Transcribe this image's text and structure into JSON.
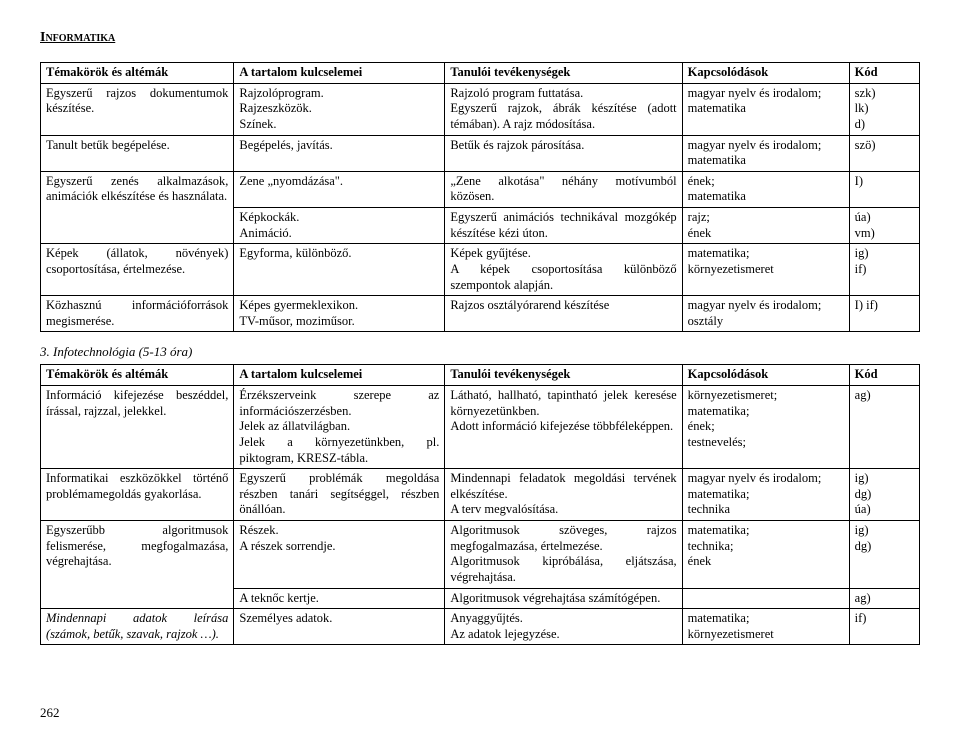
{
  "page": {
    "title": "Informatika",
    "pageNumber": "262"
  },
  "table1": {
    "headers": {
      "topic": "Témakörök és altémák",
      "content": "A tartalom kulcselemei",
      "activity": "Tanulói tevékenységek",
      "links": "Kapcsolódások",
      "code": "Kód"
    },
    "rows": [
      {
        "topic": "Egyszerű rajzos dokumentumok készítése.",
        "content": "Rajzolóprogram.\nRajzeszközök.\nSzínek.",
        "activity": "Rajzoló program futtatása.\nEgyszerű rajzok, ábrák készítése (adott témában). A rajz módosítása.",
        "links": "magyar nyelv és irodalom; matematika",
        "code": "szk)\nlk)\nd)"
      },
      {
        "topic": "Tanult betűk begépelése.",
        "content": "Begépelés, javítás.",
        "activity": "Betűk és rajzok párosítása.",
        "links": "magyar nyelv és irodalom; matematika",
        "code": "szö)"
      },
      {
        "topic_rowspan": 2,
        "topic": "Egyszerű zenés alkalmazások, animációk elkészítése és használata.",
        "content": "Zene „nyomdázása\".",
        "activity": "„Zene alkotása\" néhány motívumból közösen.",
        "links": "ének;\nmatematika",
        "code": "I)"
      },
      {
        "content": "Képkockák.\nAnimáció.",
        "activity": "Egyszerű animációs technikával mozgókép készítése kézi úton.",
        "links": "rajz;\nének",
        "code": "úa)\nvm)"
      },
      {
        "topic": "Képek (állatok, növények) csoportosítása, értelmezése.",
        "content": "Egyforma, különböző.",
        "activity": "Képek gyűjtése.\nA képek csoportosítása különböző szempontok alapján.",
        "links": "matematika;\nkörnyezetismeret",
        "code": "ig)\nif)"
      },
      {
        "topic": "Közhasznú információforrások megismerése.",
        "content": "Képes gyermeklexikon.\nTV-műsor, moziműsor.",
        "activity": "Rajzos osztályórarend készítése",
        "links": "magyar nyelv és irodalom; osztály",
        "code": "I) if)"
      }
    ]
  },
  "section2": {
    "title": "3. Infotechnológia (5-13 óra)"
  },
  "table2": {
    "headers": {
      "topic": "Témakörök és altémák",
      "content": "A tartalom kulcselemei",
      "activity": "Tanulói tevékenységek",
      "links": "Kapcsolódások",
      "code": "Kód"
    },
    "rows": [
      {
        "topic": "Információ kifejezése beszéddel, írással, rajzzal, jelekkel.",
        "content": "Érzékszerveink szerepe az információszerzésben.\nJelek az állatvilágban.\nJelek a környezetünkben, pl. piktogram, KRESZ-tábla.",
        "activity": "Látható, hallható, tapintható jelek keresése környezetünkben.\nAdott információ kifejezése többféleképpen.",
        "links": "környezetismeret;\nmatematika;\nének;\ntestnevelés;",
        "code": "ag)"
      },
      {
        "topic": "Informatikai eszközökkel történő problémamegoldás gyakorlása.",
        "content": "Egyszerű problémák megoldása részben tanári segítséggel, részben önállóan.",
        "activity": "Mindennapi feladatok megoldási tervének elkészítése.\nA terv megvalósítása.",
        "links": "magyar nyelv és irodalom; matematika;\ntechnika",
        "code": "ig)\ndg)\núa)"
      },
      {
        "topic_rowspan": 2,
        "topic": "Egyszerűbb algoritmusok felismerése, megfogalmazása, végrehajtása.",
        "content": "Részek.\nA részek sorrendje.",
        "activity": "Algoritmusok szöveges, rajzos megfogalmazása, értelmezése.\nAlgoritmusok kipróbálása, eljátszása, végrehajtása.",
        "links": "matematika;\ntechnika;\nének",
        "code": "ig)\ndg)"
      },
      {
        "content": "A teknőc kertje.",
        "activity": "Algoritmusok végrehajtása számítógépen.",
        "links": "",
        "code": "ag)"
      },
      {
        "topic": "Mindennapi adatok leírása (számok, betűk, szavak, rajzok …).",
        "content": "Személyes adatok.",
        "activity": "Anyaggyűjtés.\nAz adatok lejegyzése.",
        "links": "matematika;\nkörnyezetismeret",
        "code": "if)"
      }
    ]
  }
}
